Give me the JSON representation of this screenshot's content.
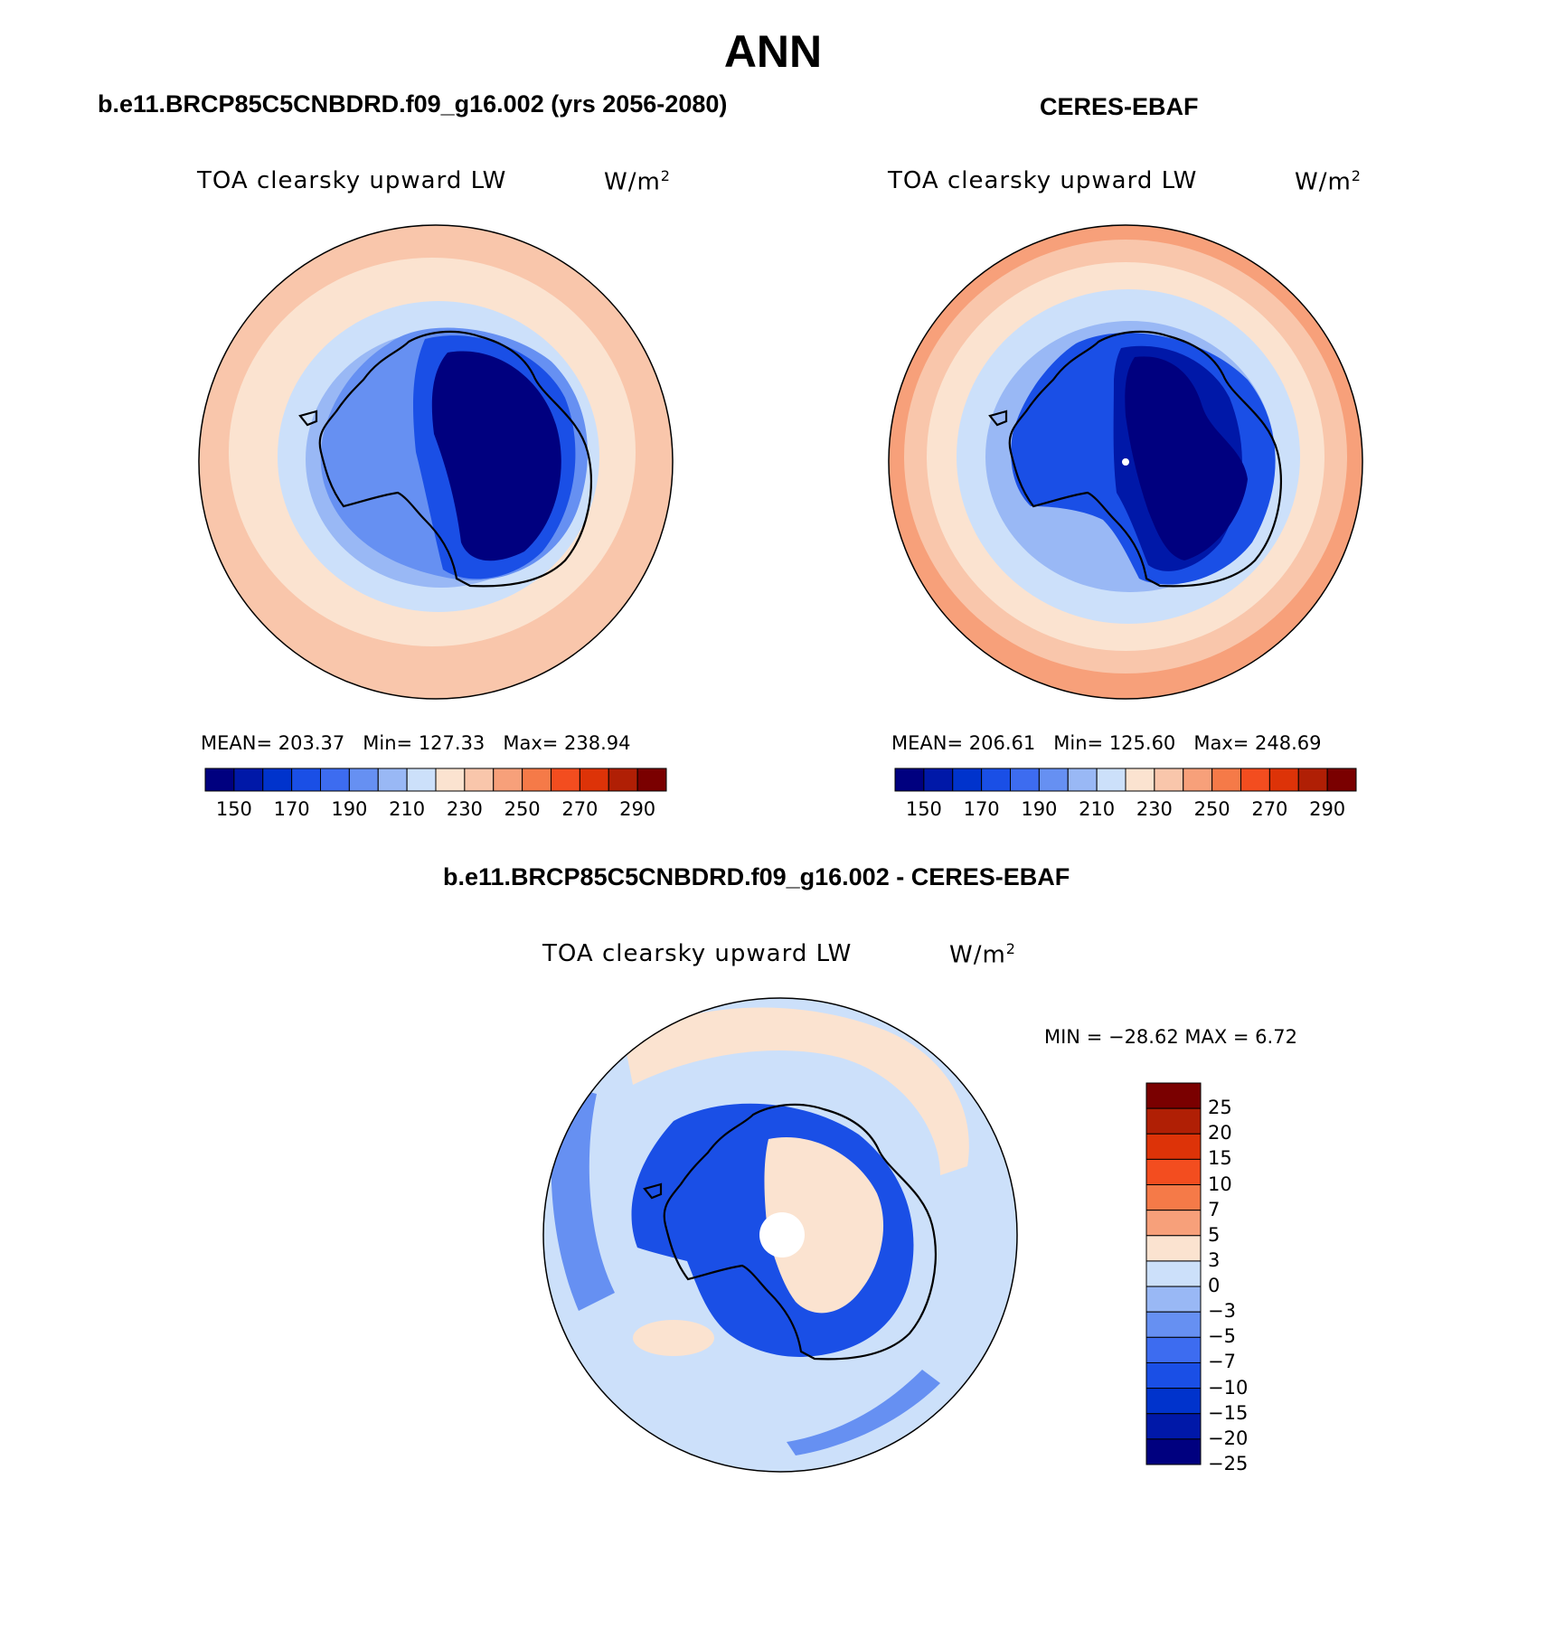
{
  "figure": {
    "season": "ANN"
  },
  "panels": {
    "model": {
      "title": "b.e11.BRCP85C5CNBDRD.f09_g16.002 (yrs 2056-2080)",
      "variable": "TOA clearsky upward LW",
      "units": "W/m",
      "units_sup": "2",
      "stats": {
        "mean_label": "MEAN=",
        "mean": "203.37",
        "min_label": "Min=",
        "min": "127.33",
        "max_label": "Max=",
        "max": "238.94"
      }
    },
    "obs": {
      "title": "CERES-EBAF",
      "variable": "TOA clearsky upward LW",
      "units": "W/m",
      "units_sup": "2",
      "stats": {
        "mean_label": "MEAN=",
        "mean": "206.61",
        "min_label": "Min=",
        "min": "125.60",
        "max_label": "Max=",
        "max": "248.69"
      }
    },
    "diff": {
      "title": "b.e11.BRCP85C5CNBDRD.f09_g16.002 - CERES-EBAF",
      "variable": "TOA clearsky upward LW",
      "units": "W/m",
      "units_sup": "2",
      "minmax": "MIN = −28.62 MAX =    6.72"
    }
  },
  "colorbars": {
    "abs": {
      "colors": [
        "#00007f",
        "#0018a8",
        "#0033cc",
        "#1a4fe6",
        "#3d6cf0",
        "#6690f2",
        "#99b8f5",
        "#cce0fa",
        "#fbe3d0",
        "#f9c6ab",
        "#f7a07a",
        "#f57a48",
        "#f34d1f",
        "#dd3308",
        "#b01f05",
        "#7a0000"
      ],
      "tick_labels": [
        "150",
        "170",
        "190",
        "210",
        "230",
        "250",
        "270",
        "290"
      ]
    },
    "diff": {
      "colors_top_to_bottom": [
        "#7a0000",
        "#b01f05",
        "#dd3308",
        "#f34d1f",
        "#f57a48",
        "#f7a07a",
        "#fbe3d0",
        "#cce0fa",
        "#99b8f5",
        "#6690f2",
        "#3d6cf0",
        "#1a4fe6",
        "#0033cc",
        "#0018a8",
        "#00007f"
      ],
      "tick_labels": [
        "25",
        "20",
        "15",
        "10",
        "7",
        "5",
        "3",
        "0",
        "−3",
        "−5",
        "−7",
        "−10",
        "−15",
        "−20",
        "−25"
      ]
    }
  },
  "map_colors": {
    "ocean_outer_warm": "#fbe3d0",
    "ocean_warm2": "#f9c6ab",
    "ocean_warm3": "#f7a07a",
    "ice_edge": "#cce0fa",
    "sea_light": "#99b8f5",
    "sea_mid": "#6690f2",
    "coast": "#1a4fe6",
    "interior_dark": "#00007f",
    "diff_bg": "#cce0fa"
  }
}
